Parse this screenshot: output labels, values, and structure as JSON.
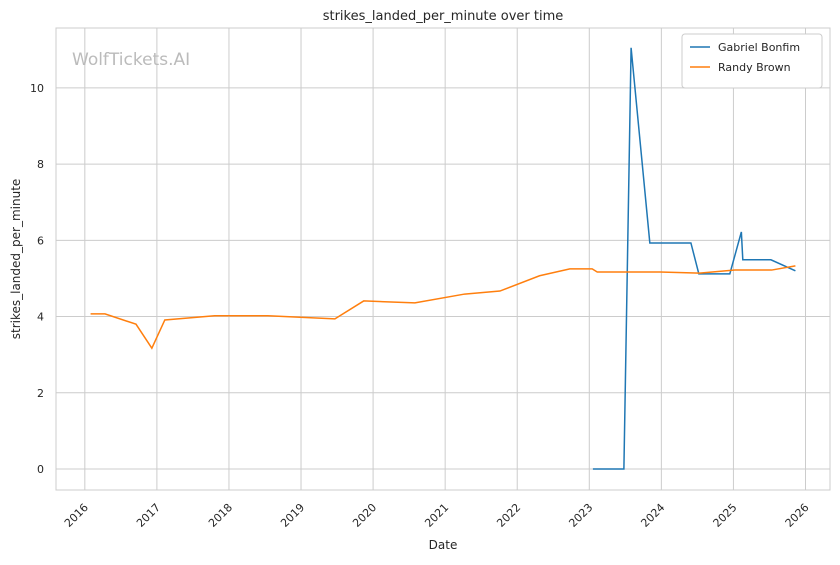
{
  "chart_data": {
    "type": "line",
    "title": "strikes_landed_per_minute over time",
    "xlabel": "Date",
    "ylabel": "strikes_landed_per_minute",
    "watermark": "WolfTickets.AI",
    "xlim": [
      2015.6,
      2026.34
    ],
    "xticks": [
      2016,
      2017,
      2018,
      2019,
      2020,
      2021,
      2022,
      2023,
      2024,
      2025,
      2026
    ],
    "ylim": [
      -0.55,
      11.57
    ],
    "yticks": [
      0,
      2,
      4,
      6,
      8,
      10
    ],
    "grid": true,
    "legend": "upper right",
    "series": [
      {
        "name": "Gabriel Bonfim",
        "color": "#1f77b4",
        "x": [
          2023.05,
          2023.48,
          2023.58,
          2023.84,
          2024.41,
          2024.52,
          2024.95,
          2025.11,
          2025.13,
          2025.52,
          2025.86
        ],
        "values": [
          0,
          0,
          11.05,
          5.93,
          5.93,
          5.12,
          5.12,
          6.22,
          5.49,
          5.49,
          5.2
        ]
      },
      {
        "name": "Randy Brown",
        "color": "#ff7f0e",
        "x": [
          2016.08,
          2016.28,
          2016.71,
          2016.93,
          2017.11,
          2017.8,
          2018.54,
          2019.47,
          2019.87,
          2020.58,
          2021.27,
          2021.76,
          2022.31,
          2022.73,
          2023.04,
          2023.11,
          2023.98,
          2024.53,
          2025.02,
          2025.53,
          2025.86
        ],
        "values": [
          4.07,
          4.07,
          3.8,
          3.17,
          3.91,
          4.02,
          4.02,
          3.94,
          4.41,
          4.36,
          4.59,
          4.67,
          5.07,
          5.25,
          5.25,
          5.17,
          5.17,
          5.14,
          5.22,
          5.22,
          5.33
        ]
      }
    ]
  }
}
